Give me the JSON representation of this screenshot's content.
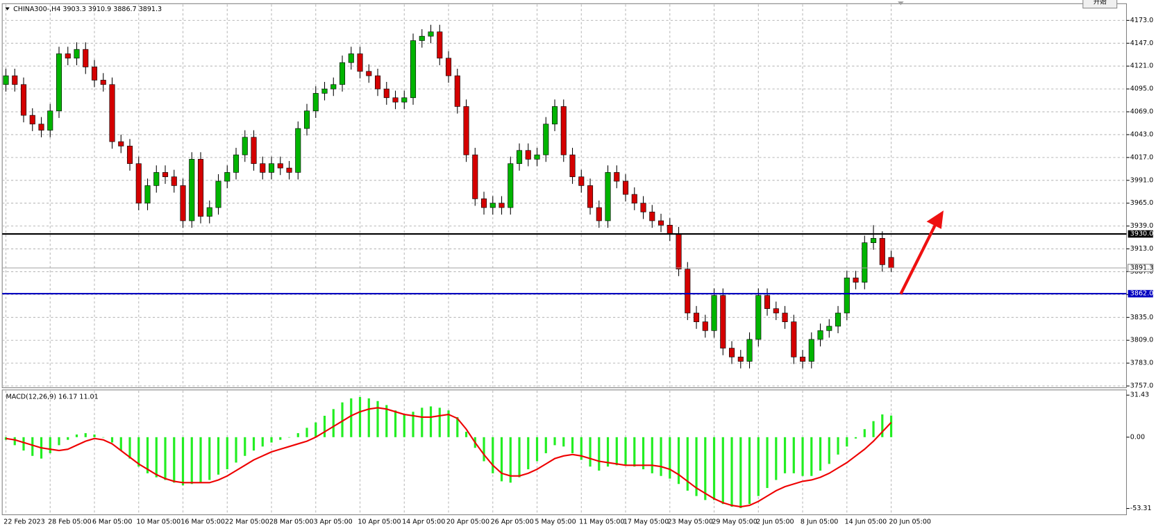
{
  "symbol": "CHINA300-,H4",
  "button": "开始",
  "chart_data": [
    {
      "type": "candlestick",
      "categories": [
        "22 Feb 2023",
        null,
        null,
        null,
        null,
        "28 Feb 05:00",
        null,
        null,
        null,
        null,
        "6 Mar 05:00",
        null,
        null,
        null,
        null,
        "10 Mar 05:00",
        null,
        null,
        null,
        null,
        "16 Mar 05:00",
        null,
        null,
        null,
        null,
        "22 Mar 05:00",
        null,
        null,
        null,
        null,
        "28 Mar 05:00",
        null,
        null,
        null,
        null,
        "3 Apr 05:00",
        null,
        null,
        null,
        null,
        "10 Apr 05:00",
        null,
        null,
        null,
        null,
        "14 Apr 05:00",
        null,
        null,
        null,
        null,
        "20 Apr 05:00",
        null,
        null,
        null,
        null,
        "26 Apr 05:00",
        null,
        null,
        null,
        null,
        "5 May 05:00",
        null,
        null,
        null,
        null,
        "11 May 05:00",
        null,
        null,
        null,
        null,
        "17 May 05:00",
        null,
        null,
        null,
        null,
        "23 May 05:00",
        null,
        null,
        null,
        null,
        "29 May 05:00",
        null,
        null,
        null,
        null,
        "2 Jun 05:00",
        null,
        null,
        null,
        null,
        "8 Jun 05:00",
        null,
        null,
        null,
        null,
        "14 Jun 05:00",
        null,
        null,
        null,
        null,
        "20 Jun 05:00"
      ],
      "open": [
        4100,
        4110,
        4100,
        4065,
        4055,
        4048,
        4070,
        4135,
        4130,
        4140,
        4120,
        4105,
        4100,
        4035,
        4030,
        4010,
        3965,
        3985,
        4000,
        3995,
        3985,
        3945,
        4015,
        3950,
        3960,
        3990,
        4000,
        4020,
        4040,
        4010,
        4000,
        4010,
        4005,
        4000,
        4050,
        4070,
        4090,
        4095,
        4100,
        4125,
        4135,
        4115,
        4110,
        4095,
        4085,
        4080,
        4085,
        4150,
        4155,
        4160,
        4130,
        4110,
        4075,
        4020,
        3970,
        3960,
        3965,
        3960,
        4010,
        4025,
        4015,
        4020,
        4055,
        4075,
        4020,
        3995,
        3985,
        3960,
        3945,
        4000,
        3990,
        3975,
        3965,
        3955,
        3945,
        3940,
        3930,
        3890,
        3840,
        3830,
        3820,
        3860,
        3800,
        3790,
        3785,
        3810,
        3860,
        3845,
        3840,
        3830,
        3790,
        3785,
        3810,
        3820,
        3825,
        3840,
        3880,
        3875,
        3920,
        3925,
        3903.3
      ],
      "high": [
        4118,
        4118,
        4108,
        4073,
        4063,
        4078,
        4143,
        4143,
        4148,
        4148,
        4128,
        4113,
        4108,
        4043,
        4038,
        4018,
        3993,
        4008,
        4008,
        4003,
        3993,
        4023,
        4023,
        3968,
        3998,
        4008,
        4028,
        4048,
        4048,
        4018,
        4018,
        4018,
        4013,
        4058,
        4078,
        4098,
        4103,
        4108,
        4133,
        4143,
        4143,
        4123,
        4118,
        4103,
        4093,
        4093,
        4158,
        4163,
        4168,
        4168,
        4138,
        4118,
        4083,
        4028,
        3978,
        3973,
        3973,
        4018,
        4033,
        4033,
        4028,
        4063,
        4083,
        4083,
        4028,
        4003,
        3993,
        3968,
        4008,
        4008,
        3998,
        3983,
        3973,
        3963,
        3953,
        3948,
        3938,
        3898,
        3848,
        3838,
        3868,
        3868,
        3808,
        3798,
        3818,
        3868,
        3868,
        3853,
        3848,
        3838,
        3798,
        3818,
        3828,
        3833,
        3848,
        3888,
        3888,
        3928,
        3940,
        3933,
        3910.9
      ],
      "low": [
        4092,
        4092,
        4057,
        4047,
        4040,
        4040,
        4062,
        4122,
        4122,
        4112,
        4097,
        4092,
        4027,
        4022,
        4002,
        3957,
        3957,
        3977,
        3987,
        3977,
        3937,
        3937,
        3942,
        3942,
        3952,
        3982,
        3992,
        4012,
        4002,
        3992,
        3992,
        3997,
        3992,
        3992,
        4042,
        4062,
        4082,
        4087,
        4092,
        4117,
        4107,
        4102,
        4087,
        4077,
        4072,
        4072,
        4077,
        4142,
        4147,
        4122,
        4102,
        4067,
        4012,
        3962,
        3952,
        3952,
        3952,
        3952,
        4002,
        4007,
        4007,
        4012,
        4047,
        4012,
        3987,
        3977,
        3952,
        3937,
        3937,
        3982,
        3967,
        3957,
        3947,
        3937,
        3932,
        3922,
        3882,
        3832,
        3822,
        3812,
        3812,
        3792,
        3782,
        3777,
        3777,
        3802,
        3837,
        3832,
        3822,
        3782,
        3777,
        3777,
        3802,
        3812,
        3817,
        3832,
        3867,
        3867,
        3912,
        3887,
        3886.7
      ],
      "close": [
        4110,
        4100,
        4065,
        4055,
        4048,
        4070,
        4135,
        4130,
        4140,
        4120,
        4105,
        4100,
        4035,
        4030,
        4010,
        3965,
        3985,
        4000,
        3995,
        3985,
        3945,
        4015,
        3950,
        3960,
        3990,
        4000,
        4020,
        4040,
        4010,
        4000,
        4010,
        4005,
        4000,
        4050,
        4070,
        4090,
        4095,
        4100,
        4125,
        4135,
        4115,
        4110,
        4095,
        4085,
        4080,
        4085,
        4150,
        4155,
        4160,
        4130,
        4110,
        4075,
        4020,
        3970,
        3960,
        3965,
        3960,
        4010,
        4025,
        4015,
        4020,
        4055,
        4075,
        4020,
        3995,
        3985,
        3960,
        3945,
        4000,
        3990,
        3975,
        3965,
        3955,
        3945,
        3940,
        3930,
        3890,
        3840,
        3830,
        3820,
        3860,
        3800,
        3790,
        3785,
        3810,
        3860,
        3845,
        3840,
        3830,
        3790,
        3785,
        3810,
        3820,
        3825,
        3840,
        3880,
        3875,
        3920,
        3925,
        3895,
        3891.3
      ],
      "up_color": "#00b400",
      "down_color": "#d40000",
      "ylim": [
        3755,
        4192
      ],
      "yticks": [
        {
          "value": 4173,
          "label": "4173.0"
        },
        {
          "value": 4147,
          "label": "4147.0"
        },
        {
          "value": 4121,
          "label": "4121.0"
        },
        {
          "value": 4095,
          "label": "4095.0"
        },
        {
          "value": 4069,
          "label": "4069.0"
        },
        {
          "value": 4043,
          "label": "4043.0"
        },
        {
          "value": 4017,
          "label": "4017.0"
        },
        {
          "value": 3991,
          "label": "3991.0"
        },
        {
          "value": 3965,
          "label": "3965.0"
        },
        {
          "value": 3939,
          "label": "3939.0"
        },
        {
          "value": 3913,
          "label": "3913.0"
        },
        {
          "value": 3887,
          "label": "3887.0"
        },
        {
          "value": 3861,
          "label": "3861.0"
        },
        {
          "value": 3835,
          "label": "3835.0"
        },
        {
          "value": 3809,
          "label": "3809.0"
        },
        {
          "value": 3783,
          "label": "3783.0"
        },
        {
          "value": 3757,
          "label": "3757.0"
        }
      ],
      "hlines": [
        {
          "value": 3930,
          "label": "3930.0",
          "color": "#000000"
        },
        {
          "value": 3862,
          "label": "3862.0",
          "color": "#0000c0"
        }
      ],
      "grid": true
    },
    {
      "type": "macd",
      "title": "MACD(12,26,9)",
      "histogram": {
        "color": "#22ee22",
        "values": [
          -2,
          -6,
          -10,
          -14,
          -16,
          -12,
          -6,
          -2,
          2,
          3,
          2,
          0,
          -4,
          -10,
          -16,
          -22,
          -27,
          -30,
          -32,
          -34,
          -36,
          -35,
          -34,
          -32,
          -28,
          -24,
          -19,
          -14,
          -10,
          -7,
          -4,
          -2,
          0,
          3,
          7,
          11,
          16,
          21,
          26,
          29,
          30,
          29,
          27,
          24,
          20,
          17,
          19,
          22,
          23,
          22,
          20,
          15,
          4,
          -8,
          -18,
          -27,
          -33,
          -34,
          -30,
          -24,
          -18,
          -12,
          -6,
          -7,
          -12,
          -17,
          -22,
          -25,
          -22,
          -21,
          -21,
          -22,
          -24,
          -27,
          -29,
          -31,
          -35,
          -40,
          -44,
          -47,
          -47,
          -50,
          -52,
          -53,
          -50,
          -44,
          -38,
          -32,
          -27,
          -27,
          -29,
          -29,
          -25,
          -20,
          -13,
          -7,
          -1,
          6,
          12,
          17,
          16.17
        ]
      },
      "signal": {
        "color": "#ee0000",
        "values": [
          -1,
          -2,
          -4,
          -6,
          -8,
          -9,
          -10,
          -9,
          -6,
          -3,
          -1,
          -2,
          -5,
          -10,
          -15,
          -20,
          -24,
          -28,
          -31,
          -33,
          -34,
          -34,
          -34,
          -34,
          -32,
          -29,
          -25,
          -21,
          -17,
          -14,
          -11,
          -9,
          -7,
          -5,
          -3,
          0,
          4,
          8,
          12,
          16,
          19,
          21,
          22,
          21,
          19,
          17,
          16,
          15,
          15,
          16,
          17,
          14,
          6,
          -4,
          -13,
          -21,
          -27,
          -29,
          -29,
          -27,
          -24,
          -20,
          -16,
          -14,
          -13,
          -14,
          -16,
          -18,
          -19,
          -20,
          -21,
          -21,
          -21,
          -21,
          -22,
          -24,
          -28,
          -33,
          -38,
          -42,
          -46,
          -49,
          -51,
          -52,
          -51,
          -48,
          -44,
          -40,
          -37,
          -35,
          -33,
          -32,
          -30,
          -27,
          -23,
          -19,
          -14,
          -9,
          -3,
          4,
          11.01
        ]
      },
      "ylim": [
        -58,
        34.2
      ],
      "yticks": [
        {
          "value": 31.43,
          "label": "31.43"
        },
        {
          "value": 0,
          "label": "0.00"
        },
        {
          "value": -53.31,
          "label": "-53.31"
        }
      ]
    }
  ]
}
